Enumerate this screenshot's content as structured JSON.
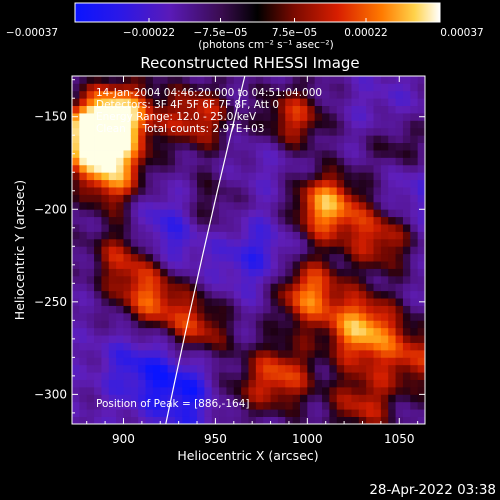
{
  "chart_data": {
    "type": "heatmap",
    "title": "Reconstructed RHESSI Image",
    "xlabel": "Heliocentric X (arcsec)",
    "ylabel": "Heliocentric Y (arcsec)",
    "xlim": [
      872,
      1064
    ],
    "ylim": [
      -316,
      -128
    ],
    "x_ticks": [
      900,
      950,
      1000,
      1050
    ],
    "x_tick_labels": [
      "900",
      "950",
      "1000",
      "1050"
    ],
    "y_ticks": [
      -150,
      -200,
      -250,
      -300
    ],
    "y_tick_labels": [
      "−150",
      "−200",
      "−250",
      "−300"
    ],
    "grid": false,
    "colorbar": {
      "range": [
        -0.00037,
        0.00037
      ],
      "ticks": [
        -0.00037,
        -0.00022,
        -7.5e-05,
        7.5e-05,
        0.00022,
        0.00037
      ],
      "tick_labels": [
        "−0.00037",
        "−0.00022",
        "−7.5e−05",
        "7.5e−05",
        "0.00022",
        "0.00037"
      ],
      "units": "(photons cm⁻² s⁻¹ asec⁻²)"
    },
    "annotations": [
      "14-Jan-2004 04:46:20.000 to 04:51:04.000",
      "Detectors: 3F 4F 5F 6F 7F 8F, Att 0",
      "Energy Range: 12.0 - 25.0 keV",
      "Clean     Total counts: 2.97E+03"
    ],
    "peak_label": "Position of Peak = [886,-164]",
    "peak_position": [
      886,
      -164
    ],
    "limb_curve": [
      [
        923,
        -316
      ],
      [
        966,
        -128
      ]
    ],
    "bright_regions": [
      {
        "x": 884,
        "y": -160,
        "strength": 1.0
      },
      {
        "x": 900,
        "y": -148,
        "strength": 0.6
      },
      {
        "x": 895,
        "y": -182,
        "strength": 0.55
      },
      {
        "x": 940,
        "y": -150,
        "strength": 0.45
      },
      {
        "x": 992,
        "y": -152,
        "strength": 0.5
      },
      {
        "x": 1010,
        "y": -198,
        "strength": 0.7
      },
      {
        "x": 1050,
        "y": -165,
        "strength": 0.35
      },
      {
        "x": 1040,
        "y": -215,
        "strength": 0.45
      },
      {
        "x": 1000,
        "y": -245,
        "strength": 0.6
      },
      {
        "x": 1030,
        "y": -265,
        "strength": 0.7
      },
      {
        "x": 1058,
        "y": -280,
        "strength": 0.4
      },
      {
        "x": 900,
        "y": -225,
        "strength": 0.4
      },
      {
        "x": 915,
        "y": -248,
        "strength": 0.5
      },
      {
        "x": 940,
        "y": -265,
        "strength": 0.45
      },
      {
        "x": 985,
        "y": -290,
        "strength": 0.5
      },
      {
        "x": 955,
        "y": -300,
        "strength": 0.35
      },
      {
        "x": 945,
        "y": -200,
        "strength": 0.3
      },
      {
        "x": 1030,
        "y": -305,
        "strength": 0.4
      }
    ],
    "dark_regions": [
      {
        "x": 925,
        "y": -210,
        "strength": 0.7
      },
      {
        "x": 910,
        "y": -285,
        "strength": 0.6
      },
      {
        "x": 940,
        "y": -300,
        "strength": 0.9
      },
      {
        "x": 972,
        "y": -225,
        "strength": 0.55
      },
      {
        "x": 1060,
        "y": -190,
        "strength": 0.45
      },
      {
        "x": 1045,
        "y": -150,
        "strength": 0.35
      },
      {
        "x": 985,
        "y": -170,
        "strength": 0.3
      }
    ]
  },
  "footer": {
    "timestamp": "28-Apr-2022 03:38"
  }
}
